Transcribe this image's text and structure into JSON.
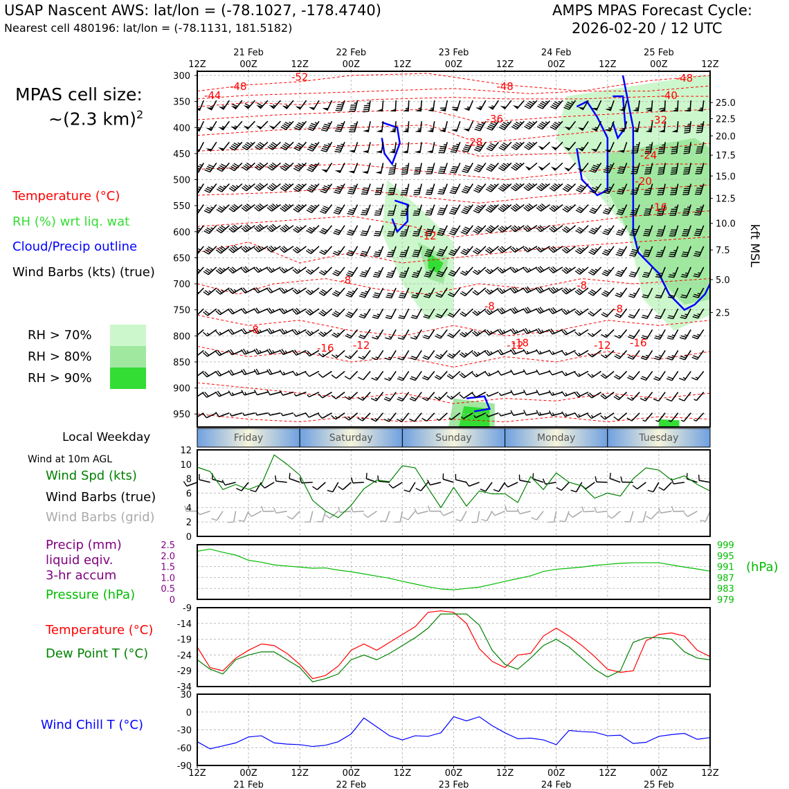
{
  "header": {
    "left_title": "USAP Nascent AWS: lat/lon = (-78.1027, -178.4740)",
    "left_subtitle": "Nearest cell 480196: lat/lon = (-78.1131, 181.5182)",
    "right_title_1": "AMPS MPAS Forecast Cycle:",
    "right_title_2": "2026-02-20 / 12 UTC"
  },
  "legend": {
    "cell_size_1": "MPAS cell size:",
    "cell_size_2": "~(2.3 km)",
    "cell_size_sup": "2",
    "items": [
      {
        "label": "Temperature (°C)",
        "color": "#ff0000"
      },
      {
        "label": "RH (%) wrt liq. wat",
        "color": "#33dd33"
      },
      {
        "label": "Cloud/Precip outline",
        "color": "#0000ff"
      },
      {
        "label": "Wind Barbs (kts) (true)",
        "color": "#000000"
      }
    ],
    "rh_items": [
      {
        "label": "RH > 70%",
        "color": "#ccf7cc"
      },
      {
        "label": "RH > 80%",
        "color": "#a0e8a0"
      },
      {
        "label": "RH > 90%",
        "color": "#33dd33"
      }
    ]
  },
  "time_axis": {
    "top_labels": [
      {
        "i": 0,
        "l1": "",
        "l2": "12Z"
      },
      {
        "i": 1,
        "l1": "21 Feb",
        "l2": "00Z"
      },
      {
        "i": 2,
        "l1": "",
        "l2": "12Z"
      },
      {
        "i": 3,
        "l1": "22 Feb",
        "l2": "00Z"
      },
      {
        "i": 4,
        "l1": "",
        "l2": "12Z"
      },
      {
        "i": 5,
        "l1": "23 Feb",
        "l2": "00Z"
      },
      {
        "i": 6,
        "l1": "",
        "l2": "12Z"
      },
      {
        "i": 7,
        "l1": "24 Feb",
        "l2": "00Z"
      },
      {
        "i": 8,
        "l1": "",
        "l2": "12Z"
      },
      {
        "i": 9,
        "l1": "25 Feb",
        "l2": "00Z"
      },
      {
        "i": 10,
        "l1": "",
        "l2": "12Z"
      }
    ]
  },
  "cross_section": {
    "pressure_ticks": [
      300,
      350,
      400,
      450,
      500,
      550,
      600,
      650,
      700,
      750,
      800,
      850,
      900,
      950
    ],
    "kft_ticks": [
      {
        "p": 352,
        "label": "25.0"
      },
      {
        "p": 383,
        "label": "22.5"
      },
      {
        "p": 416,
        "label": "20.0"
      },
      {
        "p": 453,
        "label": "17.5"
      },
      {
        "p": 493,
        "label": "15.0"
      },
      {
        "p": 536,
        "label": "12.5"
      },
      {
        "p": 584,
        "label": "10.0"
      },
      {
        "p": 635,
        "label": "7.5"
      },
      {
        "p": 692,
        "label": "5.0"
      },
      {
        "p": 755,
        "label": "2.5"
      }
    ],
    "kft_label": "kft MSL",
    "temp_labels": [
      {
        "t": 0.2,
        "p": 310,
        "label": "-52"
      },
      {
        "t": 0.08,
        "p": 328,
        "label": "-48"
      },
      {
        "t": 0.6,
        "p": 328,
        "label": "-48"
      },
      {
        "t": 0.95,
        "p": 312,
        "label": "-48"
      },
      {
        "t": 0.03,
        "p": 345,
        "label": "-44"
      },
      {
        "t": 0.92,
        "p": 345,
        "label": "-40"
      },
      {
        "t": 0.58,
        "p": 390,
        "label": "-36"
      },
      {
        "t": 0.9,
        "p": 392,
        "label": "-32"
      },
      {
        "t": 0.54,
        "p": 435,
        "label": "-28"
      },
      {
        "t": 0.88,
        "p": 460,
        "label": "-24"
      },
      {
        "t": 0.87,
        "p": 510,
        "label": "-20"
      },
      {
        "t": 0.9,
        "p": 560,
        "label": "-16"
      },
      {
        "t": 0.45,
        "p": 615,
        "label": "-12"
      },
      {
        "t": 0.29,
        "p": 700,
        "label": "-8"
      },
      {
        "t": 0.57,
        "p": 750,
        "label": "-8"
      },
      {
        "t": 0.75,
        "p": 710,
        "label": "-8"
      },
      {
        "t": 0.82,
        "p": 755,
        "label": "-8"
      },
      {
        "t": 0.11,
        "p": 795,
        "label": "-8"
      },
      {
        "t": 0.32,
        "p": 825,
        "label": "-12"
      },
      {
        "t": 0.25,
        "p": 830,
        "label": "-16"
      },
      {
        "t": 0.62,
        "p": 825,
        "label": "-12"
      },
      {
        "t": 0.63,
        "p": 820,
        "label": "-18"
      },
      {
        "t": 0.79,
        "p": 825,
        "label": "-12"
      },
      {
        "t": 0.86,
        "p": 820,
        "label": "-16"
      }
    ]
  },
  "weekday_band": {
    "title": "Local Weekday",
    "days": [
      "Friday",
      "Saturday",
      "Sunday",
      "Monday",
      "Tuesday"
    ]
  },
  "wind_panel": {
    "title": "Wind at 10m AGL",
    "labels": [
      {
        "text": "Wind Spd (kts)",
        "color": "#008000"
      },
      {
        "text": "Wind Barbs (true)",
        "color": "#000000"
      },
      {
        "text": "Wind Barbs (grid)",
        "color": "#aaaaaa"
      }
    ],
    "y_ticks": [
      "0",
      "2",
      "4",
      "6",
      "8",
      "10",
      "12"
    ]
  },
  "precip_panel": {
    "labels": [
      {
        "text": "Precip (mm)",
        "color": "#800080"
      },
      {
        "text": "liquid eqiv.",
        "color": "#800080"
      },
      {
        "text": "3-hr accum",
        "color": "#800080"
      },
      {
        "text": "Pressure (hPa)",
        "color": "#00bb00"
      }
    ],
    "left_ticks": [
      "0",
      "0.5",
      "1.0",
      "1.5",
      "2.0",
      "2.5"
    ],
    "right_ticks": [
      "979",
      "983",
      "987",
      "991",
      "995",
      "999"
    ],
    "right_label": "(hPa)"
  },
  "temp_panel": {
    "labels": [
      {
        "text": "Temperature (°C)",
        "color": "#ff0000"
      },
      {
        "text": "Dew Point T (°C)",
        "color": "#008000"
      }
    ],
    "y_ticks": [
      "-34",
      "-29",
      "-24",
      "-19",
      "-14",
      "-9"
    ]
  },
  "chill_panel": {
    "label": "Wind Chill T (°C)",
    "label_color": "#0000ff",
    "y_ticks": [
      "-90",
      "-60",
      "-30",
      "0",
      "30"
    ]
  },
  "chart_data": [
    {
      "type": "line",
      "title": "Wind at 10m AGL",
      "ylabel": "Wind Spd (kts)",
      "ylim": [
        0,
        12
      ],
      "x_hours": [
        0,
        3,
        6,
        9,
        12,
        15,
        18,
        21,
        24,
        27,
        30,
        33,
        36,
        39,
        42,
        45,
        48,
        51,
        54,
        57,
        60,
        63,
        66,
        69,
        72,
        75,
        78,
        81,
        84,
        87,
        90,
        93,
        96,
        99,
        102,
        105,
        108,
        111,
        114,
        117,
        120
      ],
      "series": [
        {
          "name": "Wind Spd (kts)",
          "color": "#008000",
          "values": [
            9.6,
            9.0,
            6.5,
            7.2,
            6.5,
            7.2,
            11.3,
            10.0,
            8.5,
            5.0,
            3.5,
            2.6,
            4.3,
            6.6,
            7.8,
            7.6,
            9.8,
            9.5,
            6.7,
            4.0,
            6.8,
            4.2,
            6.3,
            5.9,
            5.9,
            4.7,
            8.3,
            6.5,
            8.8,
            7.5,
            7.0,
            5.3,
            6.0,
            5.6,
            8.0,
            9.5,
            9.2,
            7.8,
            8.4,
            7.2,
            6.3
          ]
        }
      ]
    },
    {
      "type": "line",
      "ylabel": "Pressure (hPa)",
      "ylim": [
        979,
        999
      ],
      "x_hours": [
        0,
        3,
        6,
        9,
        12,
        15,
        18,
        21,
        24,
        27,
        30,
        33,
        36,
        39,
        42,
        45,
        48,
        51,
        54,
        57,
        60,
        63,
        66,
        69,
        72,
        75,
        78,
        81,
        84,
        87,
        90,
        93,
        96,
        99,
        102,
        105,
        108,
        111,
        114,
        117,
        120
      ],
      "series": [
        {
          "name": "Pressure (hPa)",
          "color": "#00bb00",
          "values": [
            996.6,
            997.4,
            996.2,
            995.2,
            993.3,
            992.6,
            991.6,
            991.2,
            990.8,
            990.4,
            990.5,
            989.7,
            989.1,
            988.3,
            987.5,
            986.7,
            985.6,
            984.6,
            983.6,
            982.8,
            982.5,
            983.0,
            983.5,
            984.5,
            985.6,
            986.6,
            987.6,
            989.2,
            990.0,
            990.4,
            990.8,
            991.4,
            991.8,
            992.2,
            992.4,
            992.4,
            992.4,
            991.6,
            990.8,
            990.1,
            989.3
          ]
        }
      ]
    },
    {
      "type": "line",
      "ylabel": "Temperature (°C)",
      "ylim": [
        -34,
        -9
      ],
      "x_hours": [
        0,
        3,
        6,
        9,
        12,
        15,
        18,
        21,
        24,
        27,
        30,
        33,
        36,
        39,
        42,
        45,
        48,
        51,
        54,
        57,
        60,
        63,
        66,
        69,
        72,
        75,
        78,
        81,
        84,
        87,
        90,
        93,
        96,
        99,
        102,
        105,
        108,
        111,
        114,
        117,
        120
      ],
      "series": [
        {
          "name": "Temperature (°C)",
          "color": "#ff0000",
          "values": [
            -21.5,
            -28.0,
            -29.0,
            -25.0,
            -22.5,
            -20.5,
            -21.0,
            -23.5,
            -27.0,
            -31.5,
            -30.5,
            -27.5,
            -22.5,
            -20.5,
            -22.5,
            -20.0,
            -17.5,
            -15.0,
            -10.5,
            -10.0,
            -10.5,
            -14.0,
            -22.0,
            -26.0,
            -28.0,
            -24.0,
            -23.5,
            -18.0,
            -15.5,
            -18.0,
            -21.0,
            -24.5,
            -28.5,
            -29.5,
            -29.0,
            -19.5,
            -17.5,
            -17.0,
            -18.0,
            -22.5,
            -24.5
          ]
        },
        {
          "name": "Dew Point T (°C)",
          "color": "#008000",
          "values": [
            -25.5,
            -28.5,
            -30.0,
            -25.5,
            -24.0,
            -23.0,
            -23.0,
            -25.5,
            -28.0,
            -32.5,
            -31.5,
            -30.0,
            -25.5,
            -24.0,
            -25.5,
            -23.5,
            -21.0,
            -18.5,
            -15.5,
            -11.0,
            -11.0,
            -11.0,
            -14.5,
            -22.5,
            -27.0,
            -28.5,
            -25.0,
            -21.0,
            -19.0,
            -21.5,
            -25.0,
            -28.5,
            -31.0,
            -29.0,
            -20.0,
            -18.5,
            -18.5,
            -19.0,
            -23.0,
            -25.0,
            -25.5
          ]
        }
      ]
    },
    {
      "type": "line",
      "ylabel": "Wind Chill T (°C)",
      "ylim": [
        -90,
        30
      ],
      "x_hours": [
        0,
        3,
        6,
        9,
        12,
        15,
        18,
        21,
        24,
        27,
        30,
        33,
        36,
        39,
        42,
        45,
        48,
        51,
        54,
        57,
        60,
        63,
        66,
        69,
        72,
        75,
        78,
        81,
        84,
        87,
        90,
        93,
        96,
        99,
        102,
        105,
        108,
        111,
        114,
        117,
        120
      ],
      "series": [
        {
          "name": "Wind Chill T (°C)",
          "color": "#0000ff",
          "values": [
            -50,
            -62,
            -57,
            -52,
            -42,
            -40,
            -52,
            -54,
            -55,
            -58,
            -56,
            -50,
            -37,
            -10,
            -25,
            -40,
            -47,
            -40,
            -41,
            -35,
            -8,
            -15,
            -8,
            -23,
            -35,
            -45,
            -44,
            -47,
            -55,
            -31,
            -33,
            -34,
            -40,
            -39,
            -53,
            -51,
            -41,
            -38,
            -36,
            -46,
            -43
          ]
        }
      ]
    }
  ]
}
